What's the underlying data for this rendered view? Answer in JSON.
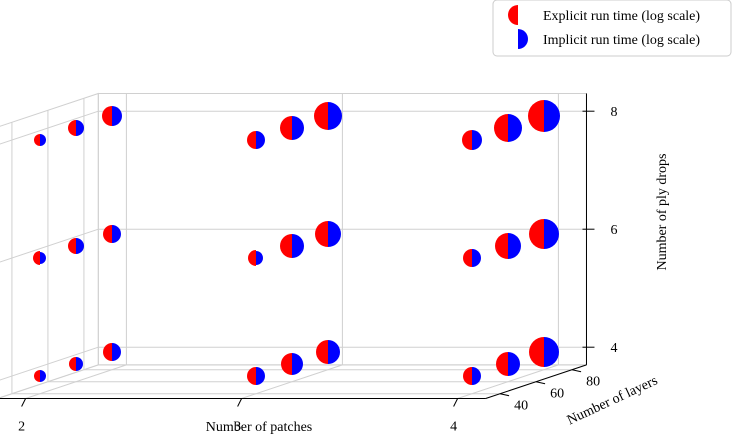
{
  "chart_data": {
    "type": "scatter",
    "subtype": "3d-split-marker",
    "xlabel": "Number of patches",
    "ylabel": "Number of layers",
    "zlabel": "Number of ply drops",
    "x_ticks": [
      "2",
      "3",
      "4"
    ],
    "y_ticks": [
      "40",
      "60",
      "80"
    ],
    "z_ticks": [
      "4",
      "6",
      "8"
    ],
    "grid": true,
    "legend_position": "top-right",
    "legend": [
      {
        "label": "Explicit run time (log scale)",
        "color": "#ff0000",
        "half": "left"
      },
      {
        "label": "Implicit run time (log scale)",
        "color": "#0000ff",
        "half": "right"
      }
    ],
    "colors": {
      "explicit": "#ff0000",
      "implicit": "#0000ff"
    },
    "points": [
      {
        "patches": 2,
        "layers": 40,
        "ply_drops": 4,
        "explicit": 6,
        "implicit": 6
      },
      {
        "patches": 2,
        "layers": 60,
        "ply_drops": 4,
        "explicit": 7,
        "implicit": 7
      },
      {
        "patches": 2,
        "layers": 80,
        "ply_drops": 4,
        "explicit": 9,
        "implicit": 9
      },
      {
        "patches": 2,
        "layers": 40,
        "ply_drops": 6,
        "explicit": 7,
        "implicit": 6
      },
      {
        "patches": 2,
        "layers": 60,
        "ply_drops": 6,
        "explicit": 8,
        "implicit": 8
      },
      {
        "patches": 2,
        "layers": 80,
        "ply_drops": 6,
        "explicit": 9,
        "implicit": 9
      },
      {
        "patches": 2,
        "layers": 40,
        "ply_drops": 8,
        "explicit": 6,
        "implicit": 6
      },
      {
        "patches": 2,
        "layers": 60,
        "ply_drops": 8,
        "explicit": 8,
        "implicit": 8
      },
      {
        "patches": 2,
        "layers": 80,
        "ply_drops": 8,
        "explicit": 10,
        "implicit": 10
      },
      {
        "patches": 3,
        "layers": 40,
        "ply_drops": 4,
        "explicit": 9,
        "implicit": 9
      },
      {
        "patches": 3,
        "layers": 60,
        "ply_drops": 4,
        "explicit": 11,
        "implicit": 11
      },
      {
        "patches": 3,
        "layers": 80,
        "ply_drops": 4,
        "explicit": 12,
        "implicit": 12
      },
      {
        "patches": 3,
        "layers": 40,
        "ply_drops": 6,
        "explicit": 8,
        "implicit": 7
      },
      {
        "patches": 3,
        "layers": 60,
        "ply_drops": 6,
        "explicit": 12,
        "implicit": 12
      },
      {
        "patches": 3,
        "layers": 80,
        "ply_drops": 6,
        "explicit": 13,
        "implicit": 13
      },
      {
        "patches": 3,
        "layers": 40,
        "ply_drops": 8,
        "explicit": 9,
        "implicit": 9
      },
      {
        "patches": 3,
        "layers": 60,
        "ply_drops": 8,
        "explicit": 12,
        "implicit": 12
      },
      {
        "patches": 3,
        "layers": 80,
        "ply_drops": 8,
        "explicit": 14,
        "implicit": 14
      },
      {
        "patches": 4,
        "layers": 40,
        "ply_drops": 4,
        "explicit": 9,
        "implicit": 9
      },
      {
        "patches": 4,
        "layers": 60,
        "ply_drops": 4,
        "explicit": 12,
        "implicit": 12
      },
      {
        "patches": 4,
        "layers": 80,
        "ply_drops": 4,
        "explicit": 15,
        "implicit": 15
      },
      {
        "patches": 4,
        "layers": 40,
        "ply_drops": 6,
        "explicit": 9,
        "implicit": 9
      },
      {
        "patches": 4,
        "layers": 60,
        "ply_drops": 6,
        "explicit": 13,
        "implicit": 13
      },
      {
        "patches": 4,
        "layers": 80,
        "ply_drops": 6,
        "explicit": 15,
        "implicit": 15
      },
      {
        "patches": 4,
        "layers": 40,
        "ply_drops": 8,
        "explicit": 10,
        "implicit": 10
      },
      {
        "patches": 4,
        "layers": 60,
        "ply_drops": 8,
        "explicit": 14,
        "implicit": 14
      },
      {
        "patches": 4,
        "layers": 80,
        "ply_drops": 8,
        "explicit": 16,
        "implicit": 16
      }
    ]
  }
}
